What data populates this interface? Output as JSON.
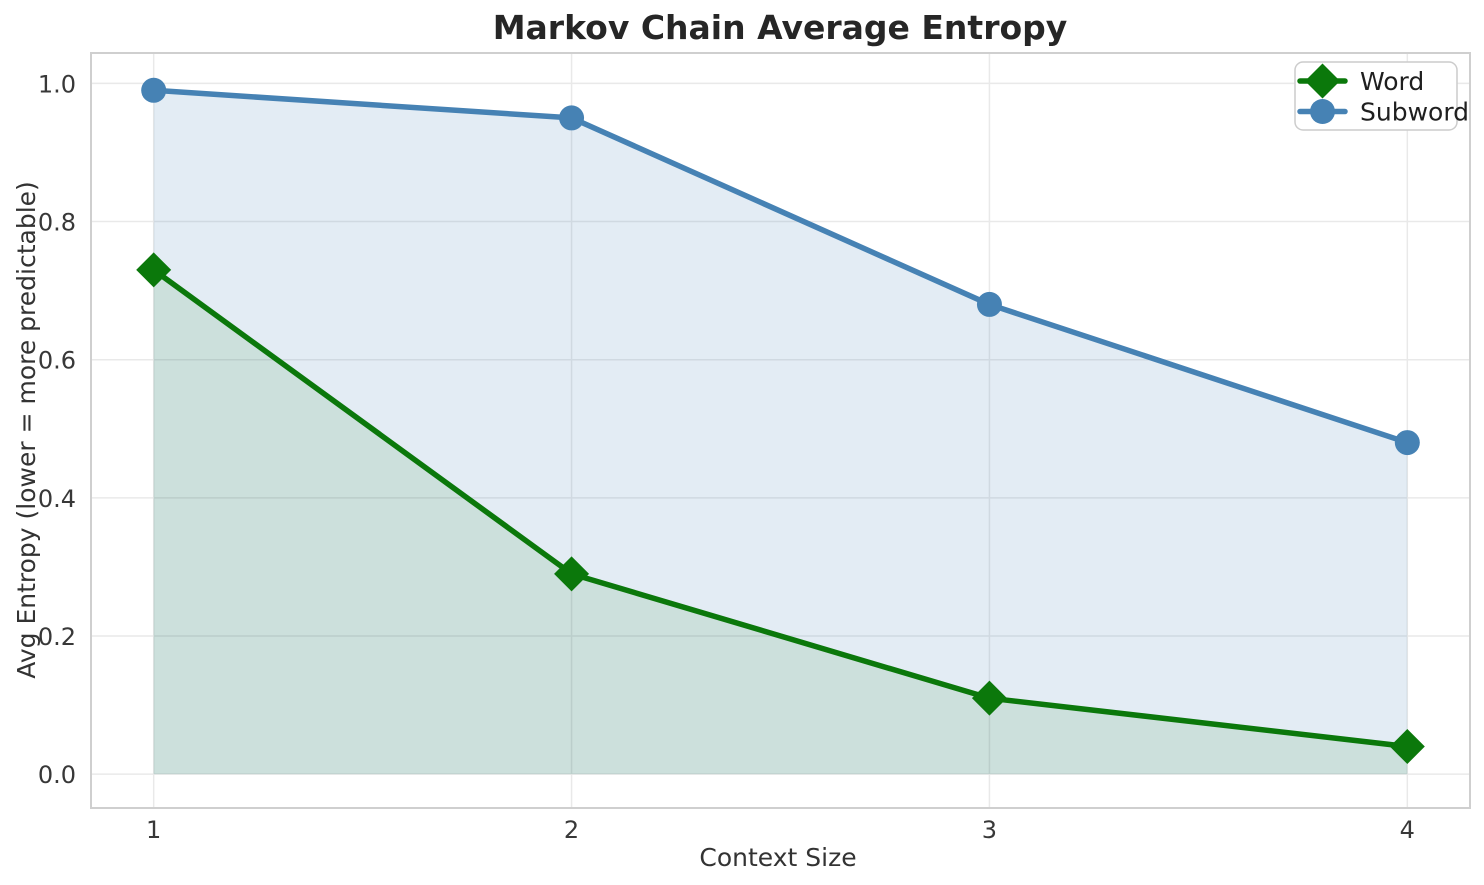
{
  "chart_data": {
    "type": "line",
    "title": "Markov Chain Average Entropy",
    "xlabel": "Context Size",
    "ylabel": "Avg Entropy (lower = more predictable)",
    "x": [
      1,
      2,
      3,
      4
    ],
    "xticks": [
      1,
      2,
      3,
      4
    ],
    "xtick_labels": [
      "1",
      "2",
      "3",
      "4"
    ],
    "yticks": [
      0.0,
      0.2,
      0.4,
      0.6,
      0.8,
      1.0
    ],
    "ytick_labels": [
      "0.0",
      "0.2",
      "0.4",
      "0.6",
      "0.8",
      "1.0"
    ],
    "xlim": [
      0.85,
      4.15
    ],
    "ylim": [
      -0.049,
      1.044
    ],
    "grid": true,
    "legend_position": "upper right",
    "area_fill_baseline": 0.0,
    "series": [
      {
        "name": "Word",
        "marker": "diamond",
        "color": "#0b780b",
        "fill_alpha": 0.1,
        "values": [
          0.73,
          0.29,
          0.11,
          0.04
        ]
      },
      {
        "name": "Subword",
        "marker": "circle",
        "color": "#4682B4",
        "fill_alpha": 0.15,
        "values": [
          0.99,
          0.95,
          0.68,
          0.48
        ]
      }
    ]
  },
  "style": {
    "background": "#ffffff",
    "axes_background": "#ffffff",
    "grid_color": "#e9e9e9",
    "spine_color": "#cfcfcf",
    "tick_text_color": "#383838",
    "title_color": "#262626",
    "legend_border": "#cccccc",
    "legend_background": "#ffffff"
  }
}
